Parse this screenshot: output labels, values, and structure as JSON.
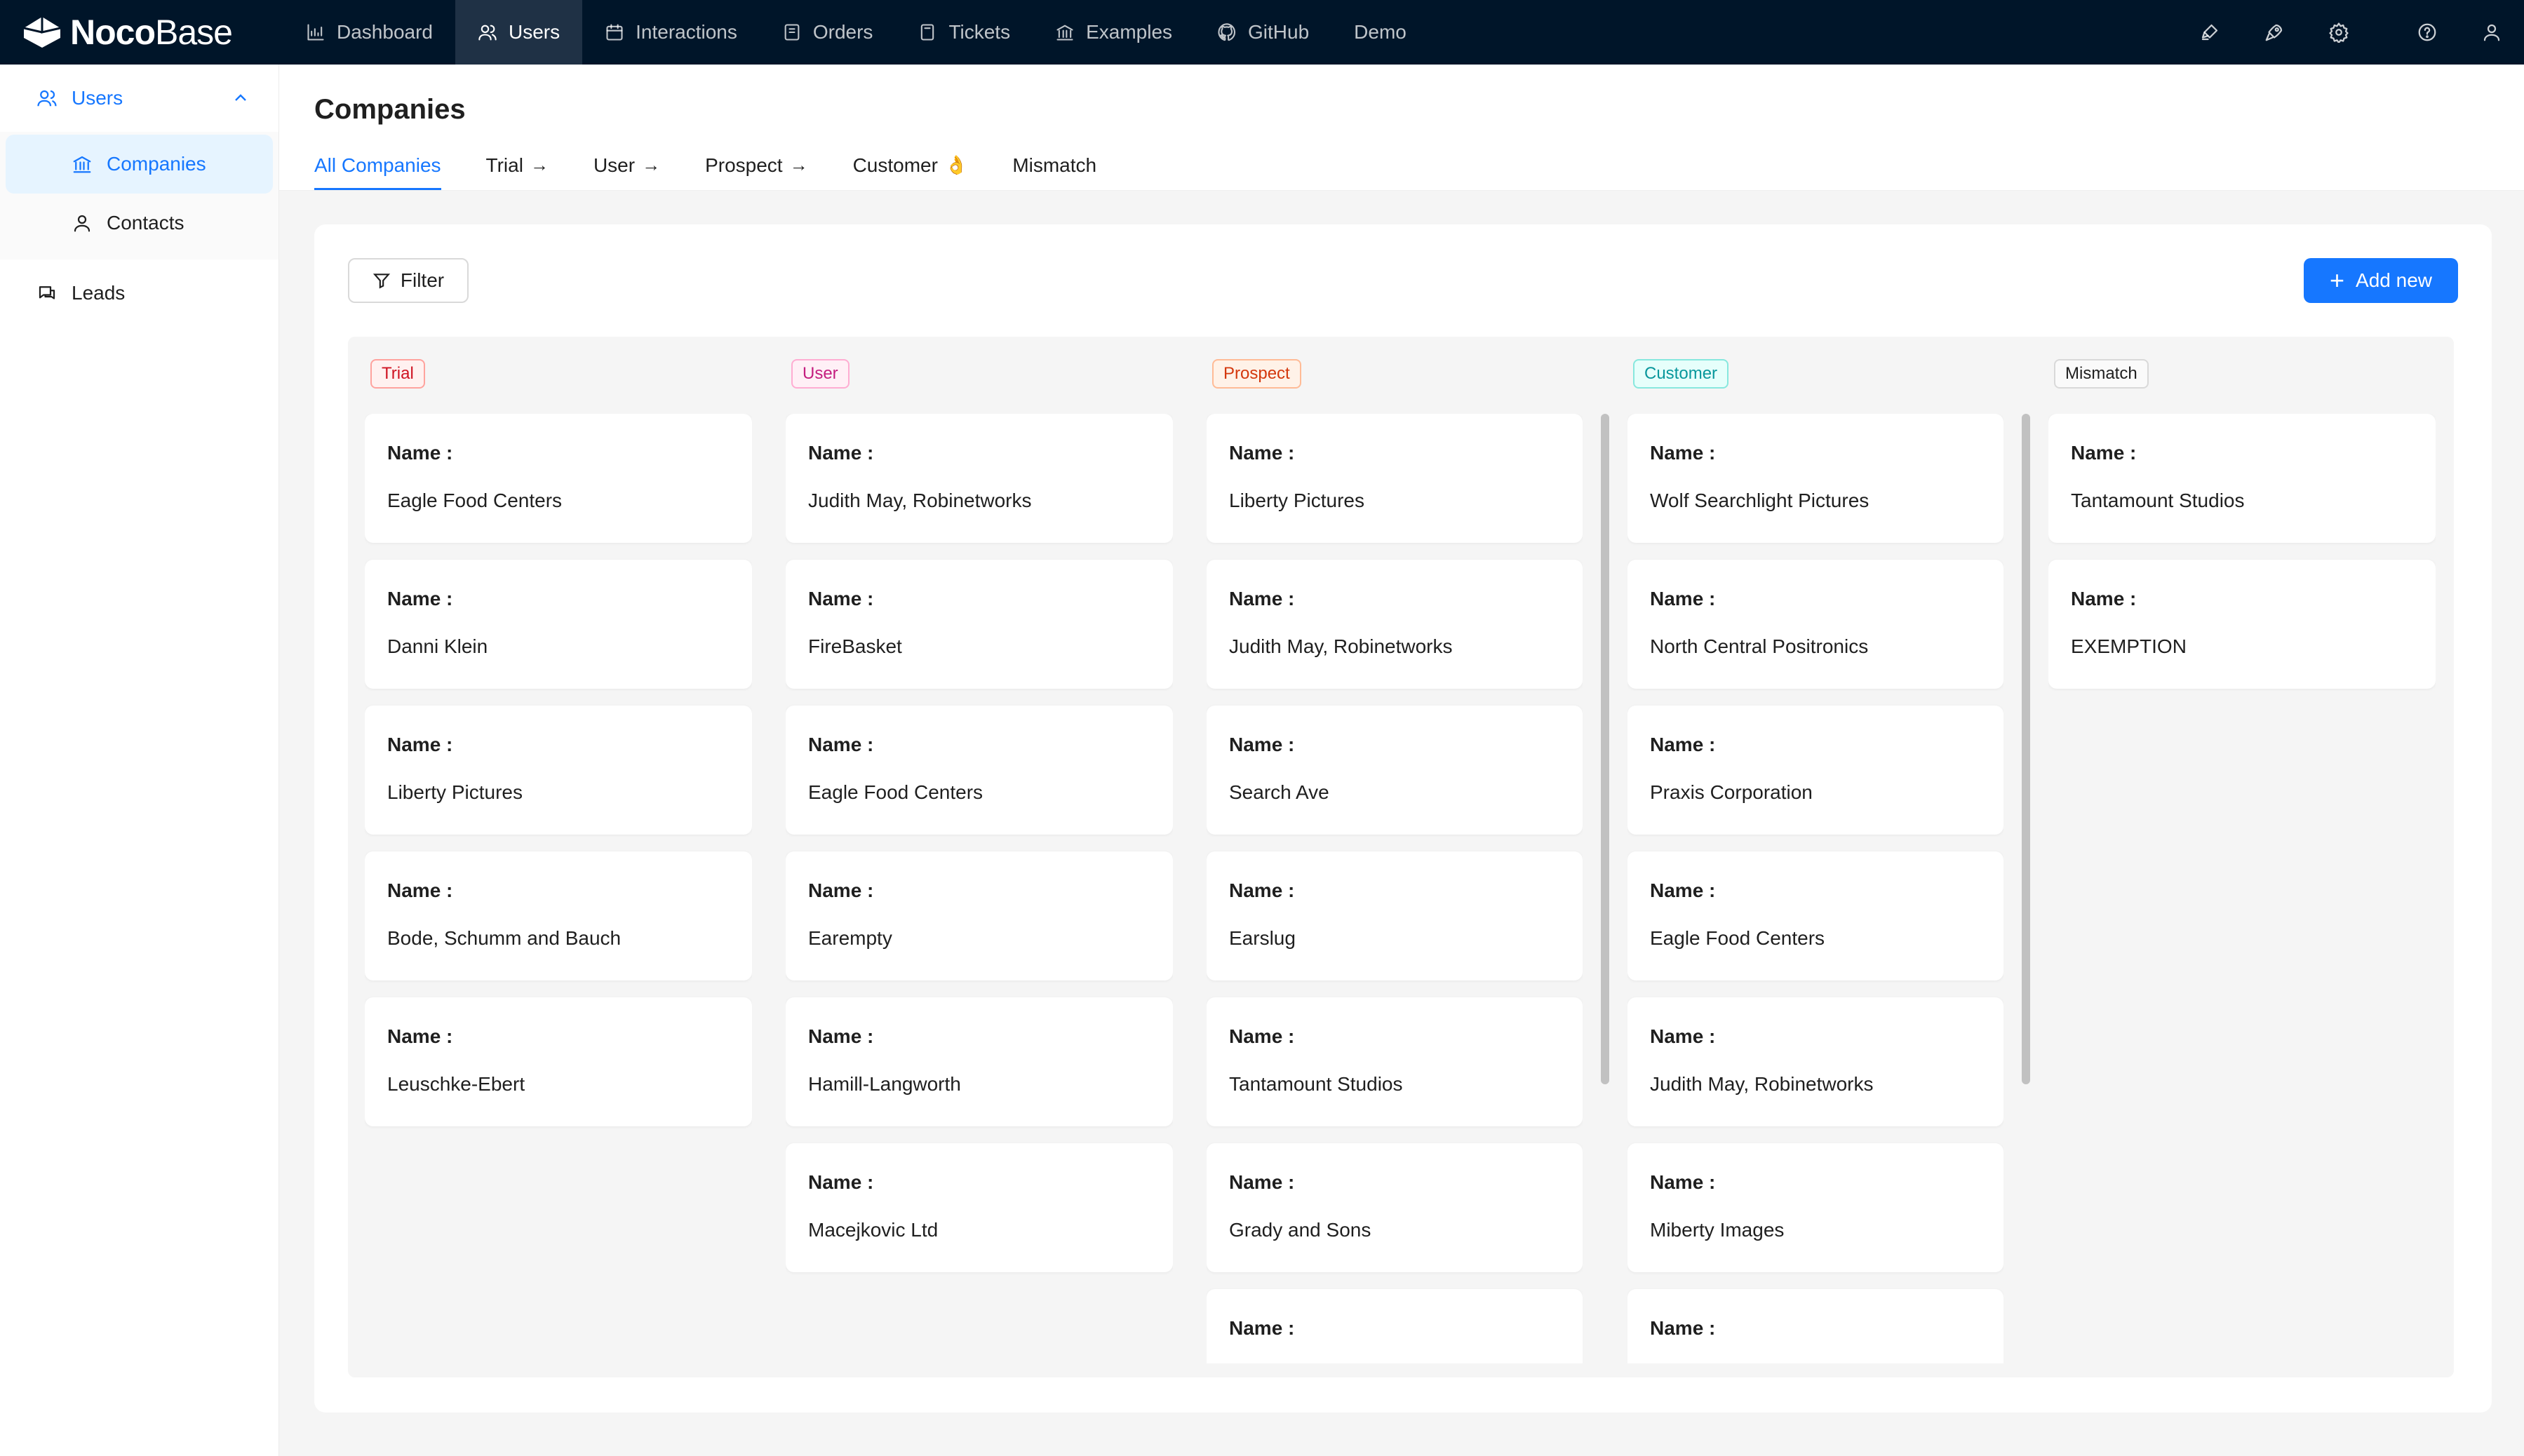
{
  "app": {
    "logo_bold": "Noco",
    "logo_light": "Base"
  },
  "topnav": {
    "items": [
      {
        "label": "Dashboard",
        "icon": "bar-chart-icon"
      },
      {
        "label": "Users",
        "icon": "users-icon",
        "active": true
      },
      {
        "label": "Interactions",
        "icon": "calendar-icon"
      },
      {
        "label": "Orders",
        "icon": "orders-icon"
      },
      {
        "label": "Tickets",
        "icon": "tickets-icon"
      },
      {
        "label": "Examples",
        "icon": "bank-icon"
      },
      {
        "label": "GitHub",
        "icon": "github-icon"
      },
      {
        "label": "Demo",
        "icon": ""
      }
    ],
    "right_icons": [
      "highlighter-icon",
      "rocket-icon",
      "gear-icon",
      "help-icon",
      "user-icon"
    ]
  },
  "sidebar": {
    "group_label": "Users",
    "sub_items": [
      {
        "label": "Companies",
        "icon": "bank-icon",
        "active": true
      },
      {
        "label": "Contacts",
        "icon": "user-icon"
      }
    ],
    "items": [
      {
        "label": "Leads",
        "icon": "chat-icon"
      }
    ]
  },
  "page": {
    "title": "Companies",
    "tabs": [
      {
        "label": "All Companies",
        "active": true,
        "suffix": ""
      },
      {
        "label": "Trial",
        "suffix": "→"
      },
      {
        "label": "User",
        "suffix": "→"
      },
      {
        "label": "Prospect",
        "suffix": "→"
      },
      {
        "label": "Customer",
        "suffix": "👌"
      },
      {
        "label": "Mismatch",
        "suffix": ""
      }
    ]
  },
  "toolbar": {
    "filter_label": "Filter",
    "add_label": "Add new"
  },
  "kanban": {
    "field_label": "Name",
    "columns": [
      {
        "tag": "Trial",
        "style": "trial",
        "cards": [
          "Eagle Food Centers",
          "Danni Klein",
          "Liberty Pictures",
          "Bode, Schumm and Bauch",
          "Leuschke-Ebert"
        ]
      },
      {
        "tag": "User",
        "style": "user",
        "cards": [
          "Judith May, Robinetworks",
          "FireBasket",
          "Eagle Food Centers",
          "Earempty",
          "Hamill-Langworth",
          "Macejkovic Ltd"
        ]
      },
      {
        "tag": "Prospect",
        "style": "prospect",
        "cards": [
          "Liberty Pictures",
          "Judith May, Robinetworks",
          "Search Ave",
          "Earslug",
          "Tantamount Studios",
          "Grady and Sons",
          ""
        ]
      },
      {
        "tag": "Customer",
        "style": "customer",
        "cards": [
          "Wolf Searchlight Pictures",
          "North Central Positronics",
          "Praxis Corporation",
          "Eagle Food Centers",
          "Judith May, Robinetworks",
          "Miberty Images",
          ""
        ]
      },
      {
        "tag": "Mismatch",
        "style": "mismatch",
        "cards": [
          "Tantamount Studios",
          "EXEMPTION"
        ]
      }
    ]
  },
  "colors": {
    "topbar_bg": "#001529",
    "accent": "#1677ff",
    "page_bg": "#f5f5f5"
  }
}
